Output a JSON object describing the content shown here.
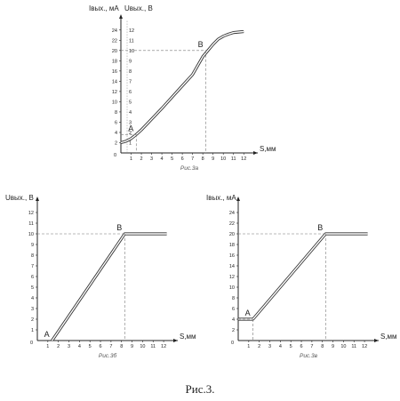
{
  "figure_caption": "Рис.3.",
  "chart_data": [
    {
      "type": "line",
      "caption": "Рис.3а",
      "xlabel": "S,мм",
      "ylabel_left": "Iвых., мА",
      "ylabel_right": "Uвых., В",
      "x_ticks": [
        1,
        2,
        3,
        4,
        5,
        6,
        7,
        8,
        9,
        10,
        11,
        12
      ],
      "y_ticks_left": [
        2,
        4,
        6,
        8,
        10,
        12,
        14,
        16,
        18,
        20,
        22,
        24
      ],
      "y_ticks_right": [
        1,
        2,
        3,
        4,
        5,
        6,
        7,
        8,
        9,
        10,
        11,
        12
      ],
      "origin_label": "0",
      "xlim": [
        0,
        12.5
      ],
      "ylim": [
        0,
        25
      ],
      "grid": false,
      "series": [
        {
          "x": [
            0,
            0.5,
            1,
            1.5,
            2,
            3,
            4,
            5,
            6,
            7,
            8,
            8.5,
            9,
            9.5,
            10,
            10.5,
            11,
            12
          ],
          "y": [
            2,
            2.3,
            2.8,
            3.6,
            4.5,
            6.6,
            8.7,
            10.9,
            13.1,
            15.3,
            18.8,
            20,
            21.2,
            22.2,
            22.8,
            23.2,
            23.5,
            23.7
          ]
        }
      ],
      "points": [
        {
          "label": "A",
          "x": 1.5,
          "y": 3.6
        },
        {
          "label": "B",
          "x": 8.3,
          "y": 20
        }
      ]
    },
    {
      "type": "line",
      "caption": "Рис.3б",
      "xlabel": "S,мм",
      "ylabel": "Uвых., В",
      "x_ticks": [
        1,
        2,
        3,
        4,
        5,
        6,
        7,
        8,
        9,
        10,
        11,
        12
      ],
      "y_ticks": [
        1,
        2,
        3,
        4,
        5,
        6,
        7,
        8,
        9,
        10,
        11,
        12
      ],
      "origin_label": "0",
      "xlim": [
        0,
        12.5
      ],
      "ylim": [
        0,
        12.5
      ],
      "grid": false,
      "series": [
        {
          "x": [
            1.4,
            8.3,
            12.3
          ],
          "y": [
            0,
            10,
            10
          ]
        }
      ],
      "points": [
        {
          "label": "A",
          "x": 1.4,
          "y": 0
        },
        {
          "label": "B",
          "x": 8.3,
          "y": 10
        }
      ]
    },
    {
      "type": "line",
      "caption": "Рис.3в",
      "xlabel": "S,мм",
      "ylabel": "Iвых., мА",
      "x_ticks": [
        1,
        2,
        3,
        4,
        5,
        6,
        7,
        8,
        9,
        10,
        11,
        12
      ],
      "y_ticks": [
        2,
        4,
        6,
        8,
        10,
        12,
        14,
        16,
        18,
        20,
        22,
        24
      ],
      "origin_label": "0",
      "xlim": [
        0,
        12.5
      ],
      "ylim": [
        0,
        25
      ],
      "grid": false,
      "series": [
        {
          "x": [
            0,
            1.4,
            8.3,
            12.3
          ],
          "y": [
            4,
            4,
            20,
            20
          ]
        }
      ],
      "points": [
        {
          "label": "A",
          "x": 1.4,
          "y": 4
        },
        {
          "label": "B",
          "x": 8.3,
          "y": 20
        }
      ]
    }
  ]
}
